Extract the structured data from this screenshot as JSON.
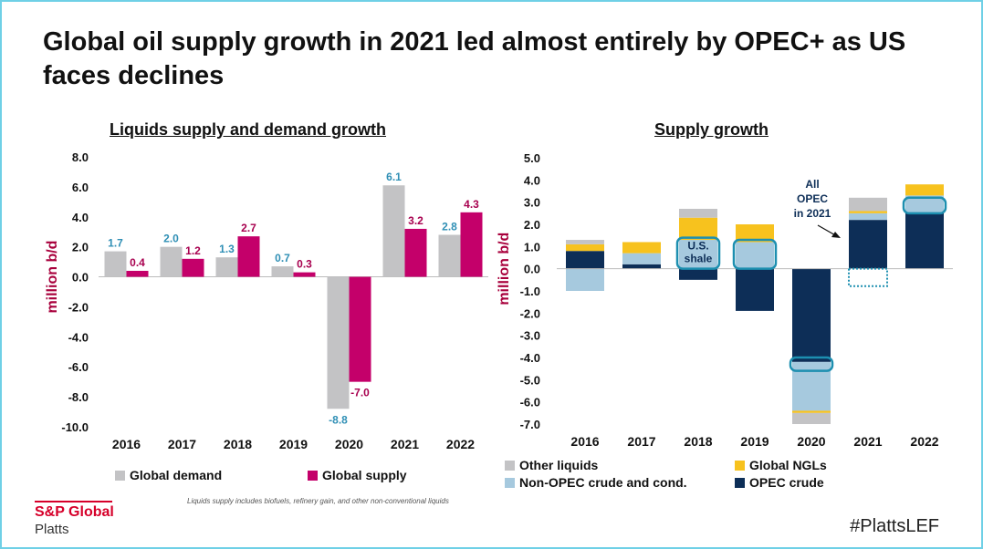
{
  "title": "Global oil supply growth in 2021 led almost entirely by OPEC+ as US faces declines",
  "left_chart_title": "Liquids supply and demand growth",
  "right_chart_title": "Supply growth",
  "footnote": "Liquids supply includes biofuels, refinery gain, and other non-conventional liquids",
  "brand": {
    "name": "S&P Global",
    "sub": "Platts"
  },
  "hashtag": "#PlattsLEF",
  "colors": {
    "global_demand": "#c3c3c5",
    "global_supply": "#c4006a",
    "demand_label": "#2f8fb5",
    "supply_label": "#a8004f",
    "other_liquids": "#c3c3c5",
    "global_ngls": "#f7c21e",
    "non_opec": "#a6c9de",
    "opec": "#0d2e57",
    "highlight": "#1d8fb0",
    "axis_label": "#a8003c"
  },
  "chart_data": [
    {
      "type": "bar",
      "title": "Liquids supply and demand growth",
      "ylabel": "million b/d",
      "ylim": [
        -10,
        8
      ],
      "yticks": [
        "8.0",
        "6.0",
        "4.0",
        "2.0",
        "0.0",
        "-2.0",
        "-4.0",
        "-6.0",
        "-8.0",
        "-10.0"
      ],
      "categories": [
        "2016",
        "2017",
        "2018",
        "2019",
        "2020",
        "2021",
        "2022"
      ],
      "series": [
        {
          "name": "Global demand",
          "values": [
            1.7,
            2.0,
            1.3,
            0.7,
            -8.8,
            6.1,
            2.8
          ],
          "labels": [
            "1.7",
            "2.0",
            "1.3",
            "0.7",
            "-8.8",
            "6.1",
            "2.8"
          ]
        },
        {
          "name": "Global supply",
          "values": [
            0.4,
            1.2,
            2.7,
            0.3,
            -7.0,
            3.2,
            4.3
          ],
          "labels": [
            "0.4",
            "1.2",
            "2.7",
            "0.3",
            "-7.0",
            "3.2",
            "4.3"
          ]
        }
      ],
      "legend": "bottom"
    },
    {
      "type": "bar",
      "stacked": true,
      "title": "Supply growth",
      "ylabel": "million b/d",
      "ylim": [
        -7,
        5
      ],
      "yticks": [
        "5.0",
        "4.0",
        "3.0",
        "2.0",
        "1.0",
        "0.0",
        "-1.0",
        "-2.0",
        "-3.0",
        "-4.0",
        "-5.0",
        "-6.0",
        "-7.0"
      ],
      "categories": [
        "2016",
        "2017",
        "2018",
        "2019",
        "2020",
        "2021",
        "2022"
      ],
      "series": [
        {
          "name": "OPEC crude",
          "values": [
            0.8,
            0.2,
            -0.5,
            -1.9,
            -4.2,
            2.2,
            2.5
          ]
        },
        {
          "name": "Non-OPEC crude and cond.",
          "values": [
            -1.0,
            0.5,
            1.3,
            1.2,
            -2.2,
            0.3,
            0.8
          ]
        },
        {
          "name": "Global NGLs",
          "values": [
            0.3,
            0.5,
            1.0,
            0.8,
            -0.1,
            0.1,
            0.5
          ]
        },
        {
          "name": "Other liquids",
          "values": [
            0.2,
            0.0,
            0.4,
            0.0,
            -0.5,
            0.6,
            0.0
          ]
        }
      ],
      "annotations": [
        {
          "text": "U.S. shale",
          "lines": [
            "U.S.",
            "shale"
          ]
        },
        {
          "text": "All OPEC in 2021",
          "lines": [
            "All",
            "OPEC",
            "in 2021"
          ]
        }
      ],
      "legend": "bottom"
    }
  ]
}
